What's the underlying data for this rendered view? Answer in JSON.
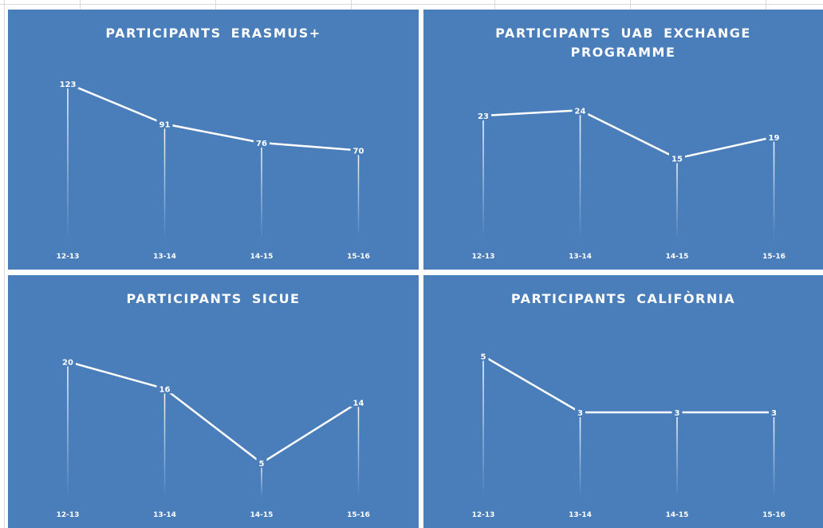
{
  "chart_data": [
    {
      "type": "line",
      "title": "PARTICIPANTS ERASMUS+",
      "categories": [
        "12-13",
        "13-14",
        "14-15",
        "15-16"
      ],
      "values": [
        123,
        91,
        76,
        70
      ],
      "color": "#ffffff",
      "ylim": [
        0,
        140
      ]
    },
    {
      "type": "line",
      "title": "PARTICIPANTS UAB EXCHANGE PROGRAMME",
      "categories": [
        "12-13",
        "13-14",
        "14-15",
        "15-16"
      ],
      "values": [
        23,
        24,
        15,
        19
      ],
      "color": "#ffffff",
      "ylim": [
        0,
        33
      ]
    },
    {
      "type": "line",
      "title": "PARTICIPANTS SICUE",
      "categories": [
        "12-13",
        "13-14",
        "14-15",
        "15-16"
      ],
      "values": [
        20,
        16,
        5,
        14
      ],
      "color": "#ffffff",
      "ylim": [
        0,
        25
      ]
    },
    {
      "type": "line",
      "title": "PARTICIPANTS CALIFÒRNIA",
      "categories": [
        "12-13",
        "13-14",
        "14-15",
        "15-16"
      ],
      "values": [
        5,
        3,
        3,
        3
      ],
      "color": "#ffffff",
      "ylim": [
        0,
        6
      ]
    }
  ]
}
